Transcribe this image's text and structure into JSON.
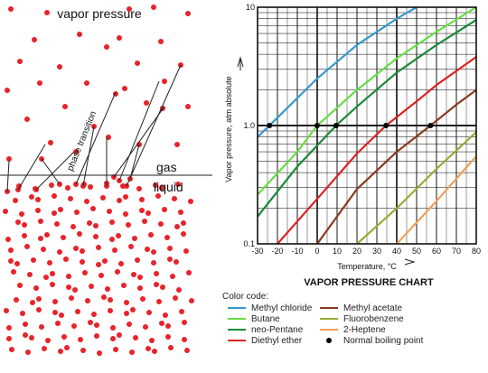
{
  "diagram": {
    "vapor_title": "vapor pressure",
    "phase_label": "phase transition",
    "gas_label": "gas",
    "liquid_label": "liquid",
    "colors": {
      "molecule": "#e8232a",
      "line": "#222222"
    }
  },
  "chart_data": {
    "type": "line",
    "title": "VAPOR PRESSURE CHART",
    "xlabel": "Temperature, °C",
    "ylabel": "Vapor pressure, atm absolute",
    "y_scale": "log",
    "xlim": [
      -30,
      80
    ],
    "ylim": [
      0.1,
      10
    ],
    "x_ticks": [
      "-30",
      "-20",
      "-10",
      "0",
      "10",
      "20",
      "30",
      "40",
      "50",
      "60",
      "70",
      "80"
    ],
    "y_ticks": [
      "0.1",
      "1.0",
      "10"
    ],
    "grid": true,
    "legend_title": "Color code:",
    "series": [
      {
        "name": "Methyl chloride",
        "color": "#3399cc",
        "x": [
          -30,
          -24,
          0,
          20,
          40,
          60
        ],
        "y": [
          0.8,
          1.0,
          2.5,
          4.8,
          8.0,
          12.5
        ],
        "boiling_point": -24
      },
      {
        "name": "Butane",
        "color": "#66dd44",
        "x": [
          -30,
          -10,
          0,
          20,
          40,
          60,
          80
        ],
        "y": [
          0.26,
          0.6,
          1.0,
          2.0,
          3.7,
          6.2,
          10.0
        ],
        "boiling_point": 0
      },
      {
        "name": "neo-Pentane",
        "color": "#1a8a3a",
        "x": [
          -30,
          -10,
          9.5,
          20,
          40,
          60,
          80
        ],
        "y": [
          0.17,
          0.45,
          1.0,
          1.45,
          2.8,
          4.8,
          7.8
        ],
        "boiling_point": 9.5
      },
      {
        "name": "Diethyl ether",
        "color": "#dd2222",
        "x": [
          -20,
          0,
          20,
          34.6,
          50,
          60,
          80
        ],
        "y": [
          0.1,
          0.24,
          0.58,
          1.0,
          1.6,
          2.2,
          3.8
        ],
        "boiling_point": 34.6
      },
      {
        "name": "Methyl acetate",
        "color": "#8b3a1e",
        "x": [
          0,
          20,
          40,
          57,
          70,
          80
        ],
        "y": [
          0.1,
          0.29,
          0.6,
          1.0,
          1.5,
          2.0
        ],
        "boiling_point": 57
      },
      {
        "name": "Fluorobenzene",
        "color": "#99aa33",
        "x": [
          20,
          40,
          60,
          80
        ],
        "y": [
          0.1,
          0.2,
          0.43,
          0.88
        ]
      },
      {
        "name": "2-Heptene",
        "color": "#f0a05a",
        "x": [
          40,
          60,
          80
        ],
        "y": [
          0.1,
          0.23,
          0.55
        ]
      }
    ],
    "boiling_point_label": "Normal boiling point"
  }
}
